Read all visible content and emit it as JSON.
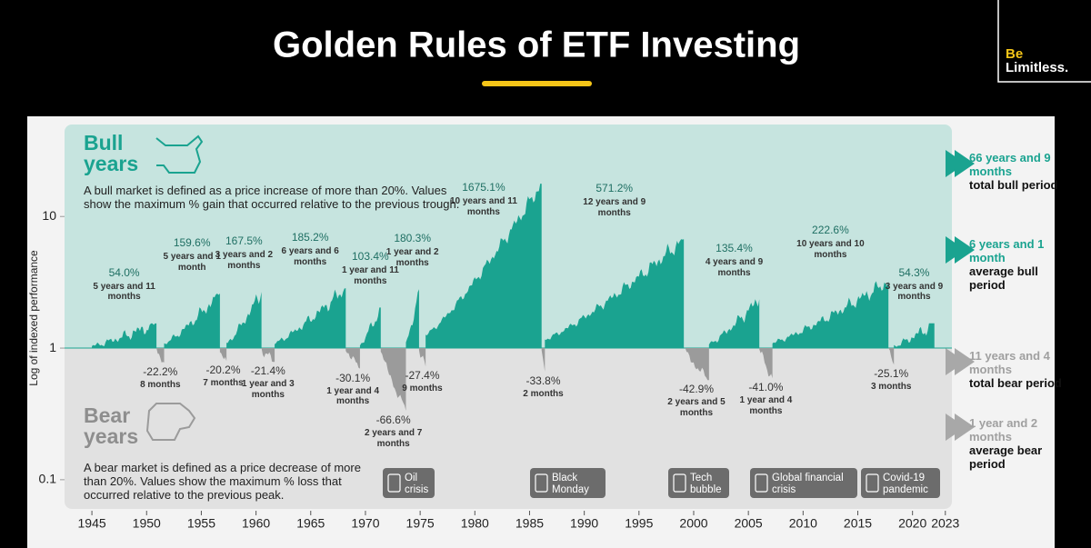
{
  "header": {
    "title": "Golden Rules of ETF Investing",
    "logo": [
      "Be",
      "Limitless."
    ]
  },
  "chart_data": {
    "type": "bull-bear",
    "y_label": "Log of indexed performance",
    "log_y": true,
    "ylim": [
      0.06,
      50
    ],
    "yticks": [
      0.1,
      1,
      10
    ],
    "xlim": [
      1942.5,
      2023.6
    ],
    "xticks": [
      1945,
      1950,
      1955,
      1960,
      1965,
      1970,
      1975,
      1980,
      1985,
      1990,
      1995,
      2000,
      2005,
      2010,
      2015,
      2020,
      2023
    ],
    "bull_color": "#1aa390",
    "bear_color": "#9b9b9b",
    "bull_heading": "Bull years",
    "bull_text": "A bull market is defined as a price increase of more than 20%. Values show the maximum % gain that occurred relative to the previous trough.",
    "bear_heading": "Bear years",
    "bear_text": "A bear market is defined as a price decrease of more than 20%. Values show the maximum % loss that occurred relative to the previous peak.",
    "bull": [
      {
        "start": 1945.0,
        "end": 1950.9,
        "value": 54.0,
        "value_label": "54.0%",
        "duration": "5 years and 11 months"
      },
      {
        "start": 1951.6,
        "end": 1956.7,
        "value": 159.6,
        "value_label": "159.6%",
        "duration": "5 years and 1 month"
      },
      {
        "start": 1957.3,
        "end": 1960.5,
        "value": 167.5,
        "value_label": "167.5%",
        "duration": "3 years and 2 months"
      },
      {
        "start": 1961.7,
        "end": 1968.2,
        "value": 185.2,
        "value_label": "185.2%",
        "duration": "6 years and 6 months"
      },
      {
        "start": 1969.5,
        "end": 1971.4,
        "value": 103.4,
        "value_label": "103.4%",
        "duration": "1 year and 11 months"
      },
      {
        "start": 1973.7,
        "end": 1974.9,
        "value": 180.3,
        "value_label": "180.3%",
        "duration": "1 year and 2 months"
      },
      {
        "start": 1975.5,
        "end": 1986.1,
        "value": 1675.1,
        "value_label": "1675.1%",
        "duration": "10 years and 11 months"
      },
      {
        "start": 1986.4,
        "end": 1999.1,
        "value": 571.2,
        "value_label": "571.2%",
        "duration": "12 years and 9 months"
      },
      {
        "start": 2001.4,
        "end": 2006.0,
        "value": 135.4,
        "value_label": "135.4%",
        "duration": "4 years and 9 months"
      },
      {
        "start": 2007.2,
        "end": 2017.8,
        "value": 222.6,
        "value_label": "222.6%",
        "duration": "10 years and 10 months"
      },
      {
        "start": 2018.3,
        "end": 2022.0,
        "value": 54.3,
        "value_label": "54.3%",
        "duration": "3 years and 9 months"
      }
    ],
    "bear": [
      {
        "start": 1950.9,
        "end": 1951.6,
        "value": -22.2,
        "value_label": "-22.2%",
        "duration": "8 months"
      },
      {
        "start": 1956.7,
        "end": 1957.3,
        "value": -20.2,
        "value_label": "-20.2%",
        "duration": "7 months"
      },
      {
        "start": 1960.5,
        "end": 1961.7,
        "value": -21.4,
        "value_label": "-21.4%",
        "duration": "1 year and 3 months"
      },
      {
        "start": 1968.2,
        "end": 1969.5,
        "value": -30.1,
        "value_label": "-30.1%",
        "duration": "1 year and 4 months"
      },
      {
        "start": 1971.4,
        "end": 1973.7,
        "value": -66.6,
        "value_label": "-66.6%",
        "duration": "2 years and 7 months"
      },
      {
        "start": 1974.9,
        "end": 1975.5,
        "value": -27.4,
        "value_label": "-27.4%",
        "duration": "9 months"
      },
      {
        "start": 1986.1,
        "end": 1986.4,
        "value": -33.8,
        "value_label": "-33.8%",
        "duration": "2 months"
      },
      {
        "start": 1999.1,
        "end": 2001.4,
        "value": -42.9,
        "value_label": "-42.9%",
        "duration": "2 years and 5 months"
      },
      {
        "start": 2006.0,
        "end": 2007.2,
        "value": -41.0,
        "value_label": "-41.0%",
        "duration": "1 year and 4 months"
      },
      {
        "start": 2017.8,
        "end": 2018.3,
        "value": -25.1,
        "value_label": "-25.1%",
        "duration": "3 months"
      }
    ],
    "summary": [
      {
        "value": "66 years and 9 months",
        "label": "total bull period"
      },
      {
        "value": "6 years and 1 month",
        "label": "average bull period"
      },
      {
        "value": "11 years and 4 months",
        "label": "total bear period"
      },
      {
        "value": "1 year and 2 months",
        "label": "average bear period"
      }
    ],
    "events": [
      "Oil crisis",
      "Black Monday",
      "Tech bubble",
      "Global financial crisis",
      "Covid-19 pandemic"
    ]
  }
}
